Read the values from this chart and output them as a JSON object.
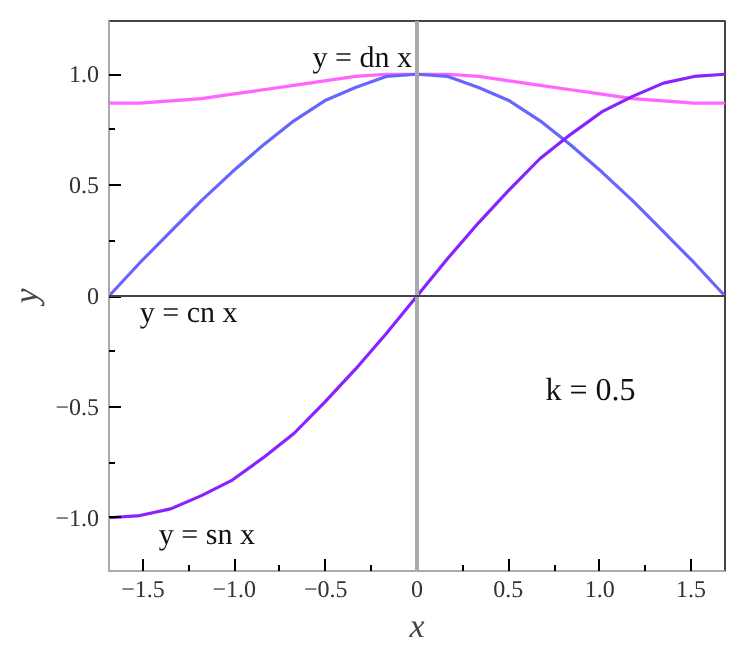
{
  "chart_data": {
    "type": "line",
    "xlabel": "x",
    "ylabel": "y",
    "x": [
      -1.686,
      -1.517,
      -1.349,
      -1.18,
      -1.011,
      -0.843,
      -0.674,
      -0.506,
      -0.337,
      -0.169,
      0,
      0.169,
      0.337,
      0.506,
      0.674,
      0.843,
      1.011,
      1.18,
      1.349,
      1.517,
      1.686
    ],
    "series": [
      {
        "name": "y = dn x",
        "color": "#ff66ff",
        "values": [
          0.87,
          0.87,
          0.88,
          0.89,
          0.91,
          0.93,
          0.95,
          0.97,
          0.99,
          1,
          1,
          1,
          0.99,
          0.97,
          0.95,
          0.93,
          0.91,
          0.89,
          0.88,
          0.87,
          0.87
        ]
      },
      {
        "name": "y = cn x",
        "color": "#6666ff",
        "values": [
          0,
          0.15,
          0.29,
          0.43,
          0.56,
          0.68,
          0.79,
          0.88,
          0.94,
          0.99,
          1,
          0.99,
          0.94,
          0.88,
          0.79,
          0.68,
          0.56,
          0.43,
          0.29,
          0.15,
          0
        ]
      },
      {
        "name": "y = sn x",
        "color": "#8822ff",
        "values": [
          -1,
          -0.99,
          -0.96,
          -0.9,
          -0.83,
          -0.73,
          -0.62,
          -0.48,
          -0.33,
          -0.17,
          0,
          0.17,
          0.33,
          0.48,
          0.62,
          0.73,
          0.83,
          0.9,
          0.96,
          0.99,
          1
        ]
      }
    ],
    "annotations": [
      "k = 0.5"
    ],
    "xlim": [
      -1.686,
      1.686
    ],
    "ylim": [
      -1.24,
      1.24
    ],
    "xticks": [
      {
        "value": -1.5,
        "label": "−1.5"
      },
      {
        "value": -1.0,
        "label": "−1.0"
      },
      {
        "value": -0.5,
        "label": "−0.5"
      },
      0,
      0.5,
      {
        "value": 1.0,
        "label": "1.0"
      },
      1.5
    ],
    "yticks": [
      {
        "value": -1.0,
        "label": "−1.0"
      },
      {
        "value": -0.5,
        "label": "−0.5"
      },
      0,
      0.5,
      {
        "value": 1.0,
        "label": "1.0"
      }
    ],
    "grid": false,
    "marker": "none",
    "line_style": "solid"
  }
}
